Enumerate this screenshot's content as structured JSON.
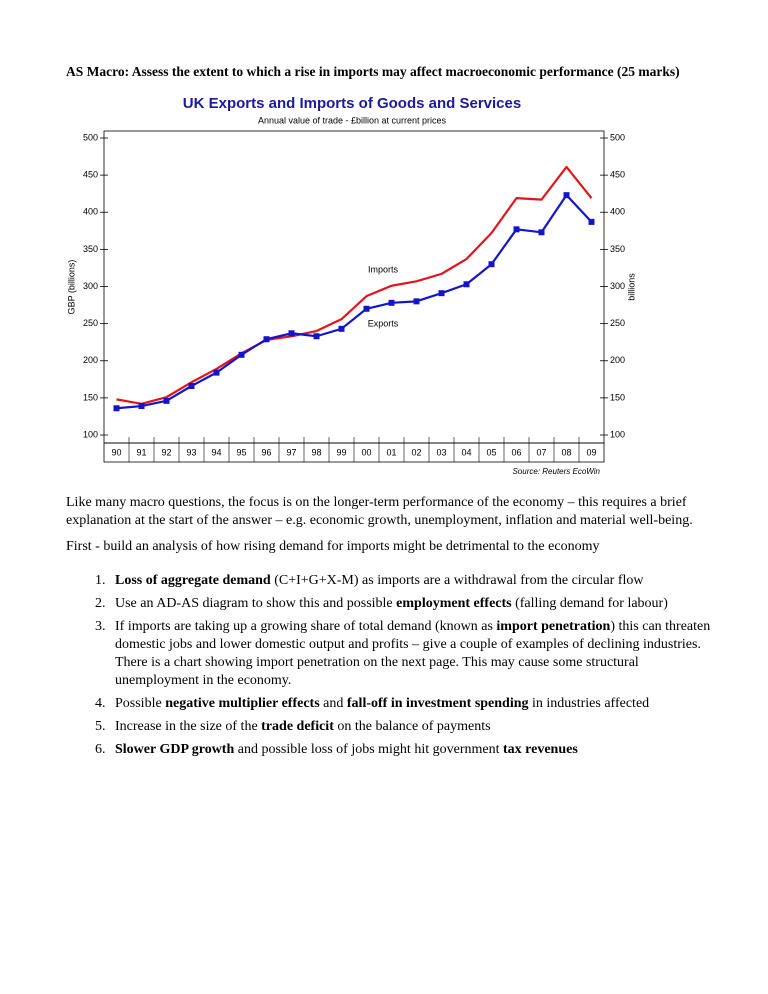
{
  "heading": "AS Macro: Assess the extent to which a rise in imports may affect macroeconomic performance (25 marks)",
  "chart_data": {
    "type": "line",
    "title": "UK Exports and Imports of Goods and Services",
    "subtitle": "Annual value of trade - £billion at current prices",
    "y_label": "GBP (billions)",
    "y2_label": "billions",
    "source": "Source: Reuters EcoWin",
    "categories": [
      "90",
      "91",
      "92",
      "93",
      "94",
      "95",
      "96",
      "97",
      "98",
      "99",
      "00",
      "01",
      "02",
      "03",
      "04",
      "05",
      "06",
      "07",
      "08",
      "09"
    ],
    "series": [
      {
        "name": "Imports",
        "color": "#e0161c",
        "values": [
          148,
          142,
          151,
          171,
          189,
          210,
          228,
          233,
          240,
          256,
          287,
          301,
          307,
          317,
          337,
          372,
          419,
          417,
          461,
          419
        ]
      },
      {
        "name": "Exports",
        "color": "#1515c8",
        "marker": "square",
        "values": [
          136,
          139,
          146,
          166,
          184,
          208,
          229,
          237,
          233,
          243,
          270,
          278,
          280,
          291,
          303,
          330,
          377,
          373,
          423,
          387
        ]
      }
    ],
    "ylim": [
      100,
      500
    ],
    "yticks": [
      100,
      150,
      200,
      250,
      300,
      350,
      400,
      450,
      500
    ],
    "y2lim": [
      100,
      500
    ],
    "y2ticks": [
      100,
      150,
      200,
      250,
      300,
      350,
      400,
      450,
      500
    ]
  },
  "paragraphs": [
    "Like many macro questions, the focus is on the longer-term performance of the economy – this requires a brief explanation at the start of the answer – e.g. economic growth, unemployment, inflation and material well-being.",
    "First - build an analysis of how rising demand for imports might be detrimental to the economy"
  ],
  "list": [
    {
      "parts": [
        {
          "text": "Loss of aggregate demand",
          "bold": true
        },
        {
          "text": " (C+I+G+X-M) as imports are a withdrawal from the circular flow"
        }
      ]
    },
    {
      "parts": [
        {
          "text": "Use an AD-AS diagram to show this and possible "
        },
        {
          "text": "employment effects",
          "bold": true
        },
        {
          "text": " (falling demand for labour)"
        }
      ]
    },
    {
      "parts": [
        {
          "text": "If imports are taking up a growing share of total demand (known as "
        },
        {
          "text": "import penetration",
          "bold": true
        },
        {
          "text": ") this can threaten domestic jobs and lower domestic output and profits – give a couple of examples of declining industries. There is a chart showing import penetration on the next page. This may cause some structural unemployment in the economy."
        }
      ]
    },
    {
      "parts": [
        {
          "text": "Possible "
        },
        {
          "text": "negative multiplier effects",
          "bold": true
        },
        {
          "text": " and "
        },
        {
          "text": "fall-off in investment spending",
          "bold": true
        },
        {
          "text": " in industries affected"
        }
      ]
    },
    {
      "parts": [
        {
          "text": "Increase in the size of the "
        },
        {
          "text": "trade deficit",
          "bold": true
        },
        {
          "text": " on the balance of payments"
        }
      ]
    },
    {
      "parts": [
        {
          "text": "Slower GDP growth",
          "bold": true
        },
        {
          "text": " and possible loss of jobs might hit government "
        },
        {
          "text": "tax revenues",
          "bold": true
        }
      ]
    }
  ]
}
